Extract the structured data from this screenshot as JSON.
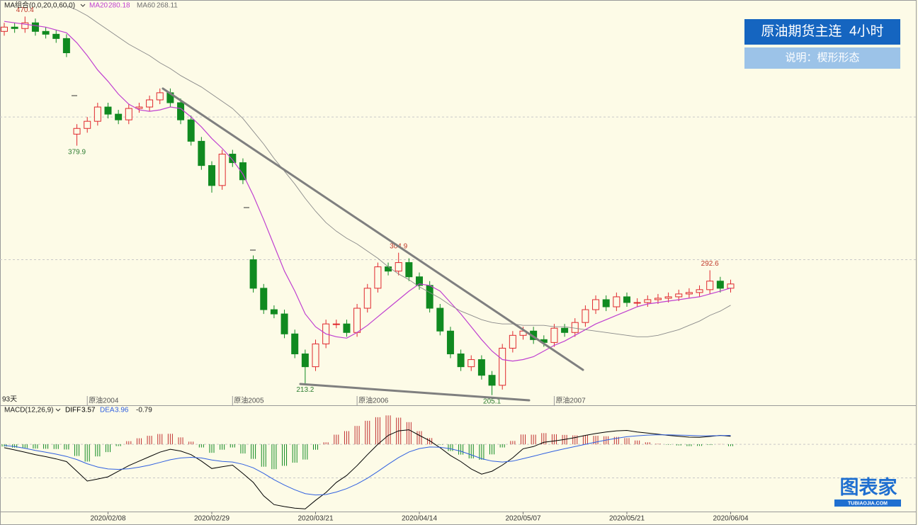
{
  "chart_data": {
    "type": "candlestick",
    "indicator_label": "MA组合(0,0,20,0,60,0)",
    "period_label": "93天",
    "categories": [
      null,
      null,
      null,
      null,
      null,
      null,
      null,
      null,
      null,
      null,
      "2020/02/08",
      null,
      null,
      null,
      null,
      null,
      null,
      null,
      null,
      null,
      "2020/02/29",
      null,
      null,
      null,
      null,
      null,
      null,
      null,
      null,
      null,
      "2020/03/21",
      null,
      null,
      null,
      null,
      null,
      null,
      null,
      null,
      null,
      "2020/04/14",
      null,
      null,
      null,
      null,
      null,
      null,
      null,
      null,
      null,
      "2020/05/07",
      null,
      null,
      null,
      null,
      null,
      null,
      null,
      null,
      null,
      "2020/05/21",
      null,
      null,
      null,
      null,
      null,
      null,
      null,
      null,
      null,
      "2020/06/04"
    ],
    "contracts": [
      null,
      null,
      null,
      null,
      null,
      null,
      null,
      null,
      "原油2004",
      null,
      null,
      null,
      null,
      null,
      null,
      null,
      null,
      null,
      null,
      null,
      null,
      null,
      "原油2005",
      null,
      null,
      null,
      null,
      null,
      null,
      null,
      null,
      null,
      null,
      null,
      "原油2006",
      null,
      null,
      null,
      null,
      null,
      null,
      null,
      null,
      null,
      null,
      null,
      null,
      null,
      null,
      null,
      null,
      null,
      null,
      "原油2007",
      null,
      null,
      null,
      null,
      null,
      null,
      null,
      null,
      null,
      null,
      null,
      null,
      null,
      null,
      null,
      null,
      null
    ],
    "open": [
      460,
      463,
      462,
      466,
      460,
      458,
      455,
      388,
      392,
      397,
      407,
      402,
      398,
      406,
      407,
      412,
      417,
      410,
      398,
      383,
      366,
      352,
      374,
      368,
      300,
      280,
      265,
      262,
      248,
      234,
      225,
      241,
      255,
      255,
      249,
      266,
      280,
      295,
      292,
      298,
      288,
      282,
      266,
      250,
      234,
      225,
      230,
      219,
      212,
      238,
      247,
      250,
      244,
      242,
      252,
      249,
      256,
      265,
      272,
      267,
      274,
      270,
      270,
      272,
      273,
      274,
      276,
      277,
      279,
      285,
      280
    ],
    "high": [
      466,
      466,
      470.4,
      469,
      463,
      461,
      458,
      395,
      400,
      410,
      410,
      405,
      409,
      410,
      415,
      420,
      420,
      413,
      401,
      386,
      369,
      377,
      377,
      371,
      303,
      283,
      268,
      265,
      251,
      237,
      244,
      258,
      258,
      258,
      269,
      283,
      298,
      298,
      304.9,
      301,
      291,
      285,
      269,
      253,
      237,
      233,
      233,
      222,
      241,
      250,
      253,
      253,
      247,
      255,
      255,
      259,
      268,
      275,
      275,
      277,
      277,
      273,
      275,
      276,
      277,
      279,
      280,
      282,
      292.6,
      288,
      286
    ],
    "low": [
      457,
      459,
      459,
      457,
      455,
      452,
      442,
      379.9,
      389,
      394,
      399,
      395,
      395,
      403,
      404,
      409,
      407,
      395,
      380,
      363,
      347,
      349,
      365,
      353,
      277,
      262,
      259,
      245,
      231,
      213.2,
      222,
      238,
      252,
      246,
      246,
      263,
      277,
      289,
      289,
      285,
      279,
      263,
      247,
      231,
      222,
      222,
      216,
      205.1,
      209,
      235,
      244,
      241,
      239,
      239,
      246,
      246,
      253,
      262,
      264,
      264,
      267,
      267,
      267,
      269,
      270,
      271,
      273,
      274,
      276,
      277,
      277
    ],
    "close": [
      463,
      462,
      466,
      460,
      458,
      455,
      445,
      392,
      397,
      407,
      402,
      398,
      406,
      407,
      412,
      417,
      410,
      398,
      383,
      366,
      352,
      374,
      368,
      356,
      280,
      265,
      262,
      248,
      234,
      225,
      241,
      255,
      255,
      249,
      266,
      280,
      295,
      292,
      298,
      288,
      282,
      266,
      250,
      234,
      225,
      230,
      219,
      212,
      238,
      247,
      250,
      244,
      242,
      252,
      249,
      256,
      265,
      272,
      267,
      274,
      270,
      270,
      272,
      273,
      274,
      276,
      277,
      279,
      285,
      280,
      283
    ],
    "up_color": "#e0282e",
    "down_color": "#108a20",
    "ylim": [
      198,
      481
    ],
    "yticks": [
      300,
      400
    ],
    "grid": true,
    "overlays": [
      {
        "name": "MA20",
        "color": "#c040d0",
        "values": [
          467,
          466,
          465,
          464,
          463,
          461,
          459,
          452,
          443,
          433,
          425,
          416,
          409,
          405,
          404,
          405,
          407,
          406,
          400,
          393,
          385,
          378,
          370,
          360,
          345,
          328,
          310,
          292,
          278,
          262,
          253,
          248,
          246,
          245,
          249,
          254,
          260,
          266,
          272,
          278,
          283,
          282,
          278,
          270,
          262,
          253,
          244,
          236,
          230,
          229,
          230,
          232,
          236,
          240,
          243,
          247,
          251,
          255,
          258,
          261,
          264,
          267,
          269,
          270,
          271,
          272,
          273,
          274,
          276,
          278,
          280.18
        ]
      },
      {
        "name": "MA60",
        "color": "#8a8a8a",
        "values": [
          null,
          null,
          null,
          null,
          null,
          null,
          478,
          475,
          471,
          466,
          461,
          456,
          451,
          447,
          443,
          438,
          434,
          429,
          425,
          421,
          416,
          411,
          406,
          399,
          390,
          381,
          371,
          362,
          353,
          343,
          334,
          326,
          320,
          315,
          311,
          306,
          301,
          295,
          290,
          286,
          281,
          277,
          273,
          268,
          264,
          261,
          258,
          256,
          255,
          255,
          254,
          254,
          254,
          253,
          253,
          252,
          251,
          250,
          249,
          248,
          247,
          246,
          246,
          247,
          249,
          251,
          254,
          257,
          261,
          264,
          268.11
        ]
      }
    ],
    "macd": {
      "label": "MACD(12,26,9)",
      "ylim": [
        -30,
        13
      ],
      "yticks": [
        -15,
        0
      ],
      "diff": {
        "name": "DIFF",
        "color": "#000000",
        "values": [
          -1.5,
          -2.5,
          -3.5,
          -4.6,
          -5.5,
          -6.5,
          -7.7,
          -12,
          -16.4,
          -15.5,
          -14.5,
          -12,
          -9.5,
          -7.5,
          -5.5,
          -3.5,
          -2.2,
          -3,
          -4.6,
          -7.5,
          -10.8,
          -10,
          -9.3,
          -13,
          -17,
          -23,
          -26.9,
          -27.8,
          -28.5,
          -28.8,
          -25,
          -21.5,
          -17,
          -13.9,
          -9.5,
          -4.6,
          0,
          4,
          6,
          6.5,
          4,
          1.6,
          -1.5,
          -5,
          -7.7,
          -11,
          -13.3,
          -12,
          -9.3,
          -6,
          -2,
          -1,
          0.9,
          1.5,
          2.2,
          3,
          4,
          4.8,
          5.5,
          6,
          6.2,
          5.5,
          5,
          4.5,
          4,
          3.6,
          3.2,
          3.1,
          3.5,
          4,
          3.57
        ]
      },
      "dea": {
        "name": "DEA",
        "color": "#3060e0",
        "values": [
          -0.5,
          -1,
          -1.8,
          -2.7,
          -3.5,
          -4.4,
          -5.4,
          -6.8,
          -8.7,
          -10.1,
          -11,
          -11.2,
          -10.9,
          -10.2,
          -9.3,
          -8.1,
          -6.9,
          -6.1,
          -5.8,
          -6.1,
          -7,
          -7.6,
          -7.9,
          -8.9,
          -10.5,
          -13,
          -15.8,
          -18.2,
          -20.3,
          -22,
          -22.6,
          -22.4,
          -21.3,
          -19.8,
          -17.7,
          -15.1,
          -12.1,
          -8.9,
          -5.9,
          -3.4,
          -1.9,
          -1.2,
          -1.3,
          -2,
          -3.1,
          -4.7,
          -6.4,
          -7.5,
          -7.9,
          -7.5,
          -6.4,
          -5.3,
          -4.1,
          -3,
          -2,
          -1,
          0,
          1,
          1.9,
          2.7,
          3.4,
          3.8,
          4.1,
          4.2,
          4.2,
          4.1,
          4,
          3.8,
          3.8,
          3.9,
          3.96
        ]
      },
      "hist": {
        "up_color": "#c03030",
        "down_color": "#108a20",
        "values": [
          -1,
          -1.5,
          -1.7,
          -1.9,
          -2,
          -2.1,
          -2.3,
          -5.2,
          -7.7,
          -5.4,
          -3.5,
          -0.8,
          1.4,
          2.7,
          3.8,
          4.6,
          4.7,
          3.1,
          1.2,
          -1.4,
          -3.8,
          -2.4,
          -1.4,
          -4.1,
          -6.5,
          -10,
          -11.1,
          -9.6,
          -8.2,
          -6.8,
          -2.4,
          0.9,
          4.3,
          5.9,
          8.2,
          10.5,
          12.1,
          12.9,
          11.9,
          9.9,
          5.9,
          2.8,
          -0.2,
          -3,
          -4.6,
          -6.3,
          -6.9,
          -4.5,
          -1.4,
          1.5,
          4.4,
          4.3,
          5,
          4.5,
          4.2,
          4,
          4,
          3.8,
          3.6,
          3.3,
          2.8,
          1.7,
          0.9,
          0.3,
          -0.2,
          -0.5,
          -0.8,
          -0.7,
          -0.3,
          0.1,
          -0.79
        ]
      }
    },
    "panel": {
      "title": "原油期货主连  4小时",
      "note": "说明：楔形形态"
    },
    "logo": {
      "name": "图表家",
      "url": "TUBIAOJIA.COM"
    }
  }
}
